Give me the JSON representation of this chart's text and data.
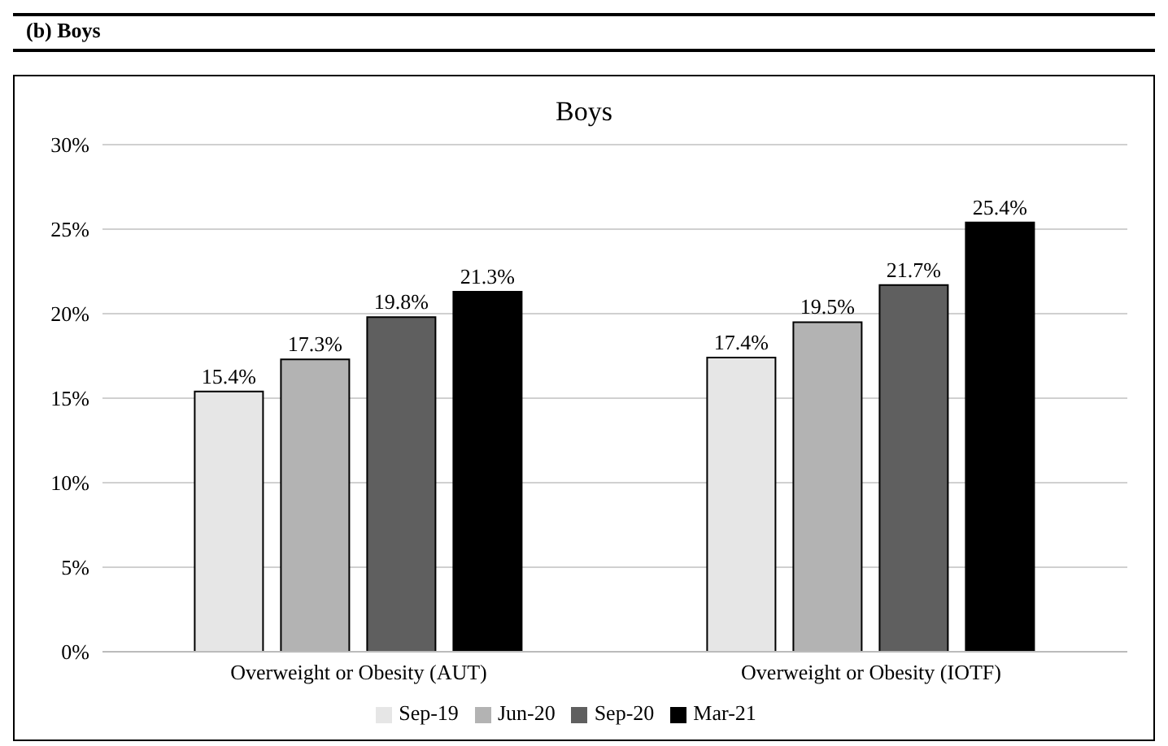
{
  "chart_data": {
    "type": "bar",
    "title": "Boys",
    "annotations": [
      "(b) Boys"
    ],
    "categories": [
      "Overweight or Obesity (AUT)",
      "Overweight or Obesity (IOTF)"
    ],
    "series": [
      {
        "name": "Sep-19",
        "color": "#e6e6e6",
        "values": [
          15.4,
          17.4
        ],
        "value_labels": [
          "15.4%",
          "17.4%"
        ]
      },
      {
        "name": "Jun-20",
        "color": "#b3b3b3",
        "values": [
          17.3,
          19.5
        ],
        "value_labels": [
          "17.3%",
          "19.5%"
        ]
      },
      {
        "name": "Sep-20",
        "color": "#5f5f5f",
        "values": [
          19.8,
          21.7
        ],
        "value_labels": [
          "19.8%",
          "21.7%"
        ]
      },
      {
        "name": "Mar-21",
        "color": "#000000",
        "values": [
          21.3,
          25.4
        ],
        "value_labels": [
          "21.3%",
          "25.4%"
        ]
      }
    ],
    "ylim": [
      0,
      30
    ],
    "yticks": [
      {
        "value": 0,
        "label": "0%"
      },
      {
        "value": 5,
        "label": "5%"
      },
      {
        "value": 10,
        "label": "10%"
      },
      {
        "value": 15,
        "label": "15%"
      },
      {
        "value": 20,
        "label": "20%"
      },
      {
        "value": 25,
        "label": "25%"
      },
      {
        "value": 30,
        "label": "30%"
      }
    ],
    "grid": "y",
    "legend": "bottom"
  }
}
